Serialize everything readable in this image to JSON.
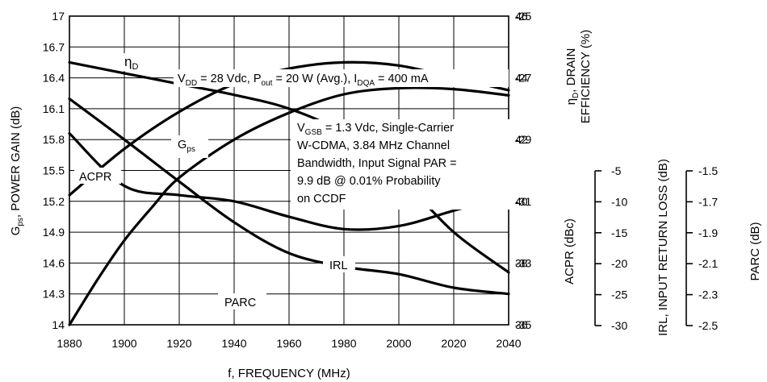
{
  "chart_data": {
    "type": "line",
    "xlabel": "f, FREQUENCY (MHz)",
    "x_ticks": [
      "1880",
      "1900",
      "1920",
      "1940",
      "1960",
      "1980",
      "2000",
      "2020",
      "2040"
    ],
    "xlim": [
      1880,
      2040
    ],
    "grid": true,
    "left_axis": {
      "label": "Gps, POWER GAIN (dB)",
      "label_main": "G",
      "label_sub": "ps",
      "label_rest": ", POWER GAIN (dB)",
      "ticks": [
        "14",
        "14.3",
        "14.6",
        "14.9",
        "15.2",
        "15.5",
        "15.8",
        "16.1",
        "16.4",
        "16.7",
        "17"
      ],
      "range": [
        14,
        17
      ]
    },
    "right_axis_upper": {
      "label_line1_main": "η",
      "label_line1_sub": "D",
      "label_line1_rest": ", DRAIN",
      "label_line2": "EFFICIENCY (%)",
      "ticks": [
        "36",
        "38",
        "40",
        "42",
        "44",
        "46"
      ],
      "range": [
        36,
        46
      ]
    },
    "right_axis_lower": {
      "label": "ACPR (dBc)",
      "ticks": [
        "-35",
        "-33",
        "-31",
        "-29",
        "-27",
        "-25"
      ],
      "range": [
        -35,
        -25
      ]
    },
    "irl_axis": {
      "label": "IRL, INPUT RETURN LOSS (dB)",
      "ticks": [
        "-5",
        "-10",
        "-15",
        "-20",
        "-25",
        "-30"
      ],
      "range": [
        -30,
        -5
      ]
    },
    "parc_axis": {
      "label": "PARC (dB)",
      "ticks": [
        "-1.5",
        "-1.7",
        "-1.9",
        "-2.1",
        "-2.3",
        "-2.5"
      ],
      "range": [
        -2.5,
        -1.5
      ]
    },
    "series": [
      {
        "name": "ηD",
        "axis": "eff",
        "x": [
          1880,
          1900,
          1920,
          1940,
          1960,
          1980,
          2000,
          2020,
          2040
        ],
        "values": [
          40.2,
          41.7,
          42.9,
          43.8,
          44.3,
          44.5,
          44.4,
          44.0,
          43.6
        ]
      },
      {
        "name": "Gps",
        "axis": "gain",
        "x": [
          1880,
          1890,
          1900,
          1910,
          1920,
          1940,
          1960,
          1980,
          2000,
          2020,
          2040
        ],
        "values": [
          14.0,
          14.43,
          14.82,
          15.14,
          15.43,
          15.8,
          16.06,
          16.24,
          16.3,
          16.29,
          16.23
        ]
      },
      {
        "name": "ACPR",
        "axis": "acpr",
        "x": [
          1880,
          1900,
          1920,
          1940,
          1960,
          1980,
          2000,
          2020,
          2040
        ],
        "values": [
          -26.5,
          -26.85,
          -27.2,
          -27.55,
          -28.0,
          -28.8,
          -30.2,
          -32.0,
          -33.3
        ]
      },
      {
        "name": "IRL",
        "axis": "irl",
        "x": [
          1880,
          1900,
          1920,
          1940,
          1960,
          1980,
          2000,
          2020,
          2040
        ],
        "values": [
          -11.7,
          -15.0,
          -18.4,
          -21.7,
          -24.2,
          -25.3,
          -25.9,
          -27.0,
          -27.5
        ]
      },
      {
        "name": "PARC",
        "axis": "parc",
        "x": [
          1880,
          1900,
          1920,
          1940,
          1960,
          1980,
          2000,
          2020,
          2040
        ],
        "values": [
          -1.88,
          -2.05,
          -2.08,
          -2.1,
          -2.15,
          -2.19,
          -2.18,
          -2.13,
          -2.08
        ]
      }
    ],
    "annotations": {
      "conditions_pre": "V",
      "conditions_pre_sub": "DD",
      "conditions_mid1": " = 28 Vdc, P",
      "conditions_mid1_sub": "out",
      "conditions_mid2": " = 20 W (Avg.), I",
      "conditions_mid2_sub": "DQA",
      "conditions_end": " = 400 mA",
      "signal_line1_pre": "V",
      "signal_line1_sub": "GSB",
      "signal_line1_rest": " = 1.3 Vdc, Single-Carrier",
      "signal_line2": "W-CDMA, 3.84 MHz Channel",
      "signal_line3": "Bandwidth, Input Signal PAR =",
      "signal_line4": "9.9 dB @ 0.01% Probability",
      "signal_line5": "on CCDF",
      "label_eta": "η",
      "label_eta_sub": "D",
      "label_gps": "G",
      "label_gps_sub": "ps",
      "label_acpr": "ACPR",
      "label_irl": "IRL",
      "label_parc": "PARC"
    }
  }
}
